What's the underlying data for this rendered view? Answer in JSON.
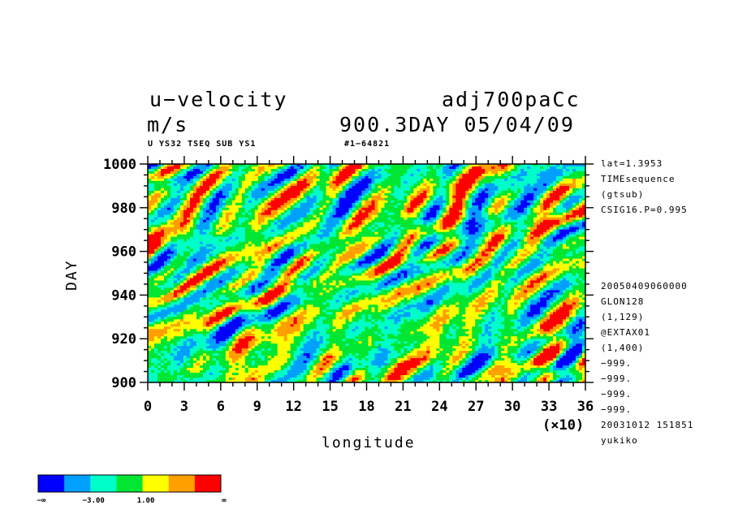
{
  "header": {
    "title_left": "u−velocity",
    "title_right": "adj700paCc",
    "units": "m/s",
    "time_info": "900.3DAY 05/04/09",
    "subtitle_left": "U YS32 TSEQ SUB YS1",
    "subtitle_right": "#1−64821"
  },
  "side_info": {
    "top": [
      "lat=1.3953",
      "TIMEsequence",
      "(gtsub)",
      "CSIG16.P=0.995"
    ],
    "bottom": [
      "20050409060000",
      "GLON128",
      "(1,129)",
      "@EXTAX01",
      "(1,400)",
      "−999.",
      "−999.",
      "−999.",
      "−999.",
      "20031012 151851",
      "yukiko"
    ]
  },
  "chart_data": {
    "type": "heatmap",
    "title": "u−velocity",
    "xlabel": "longitude",
    "x_multiplier": "(×10)",
    "ylabel": "DAY",
    "xlim": [
      0,
      36
    ],
    "ylim": [
      900,
      1000
    ],
    "x_ticks": [
      "0",
      "3",
      "6",
      "9",
      "12",
      "15",
      "18",
      "21",
      "24",
      "27",
      "30",
      "33",
      "36"
    ],
    "y_ticks": [
      "900",
      "920",
      "940",
      "960",
      "980",
      "1000"
    ],
    "colorbar": {
      "colors": [
        "#0000ff",
        "#00a0ff",
        "#00ffc8",
        "#00e632",
        "#ffff00",
        "#ffa000",
        "#ff0000"
      ],
      "labels": [
        "−∞",
        "−3.00",
        "1.00",
        "∞"
      ]
    }
  }
}
